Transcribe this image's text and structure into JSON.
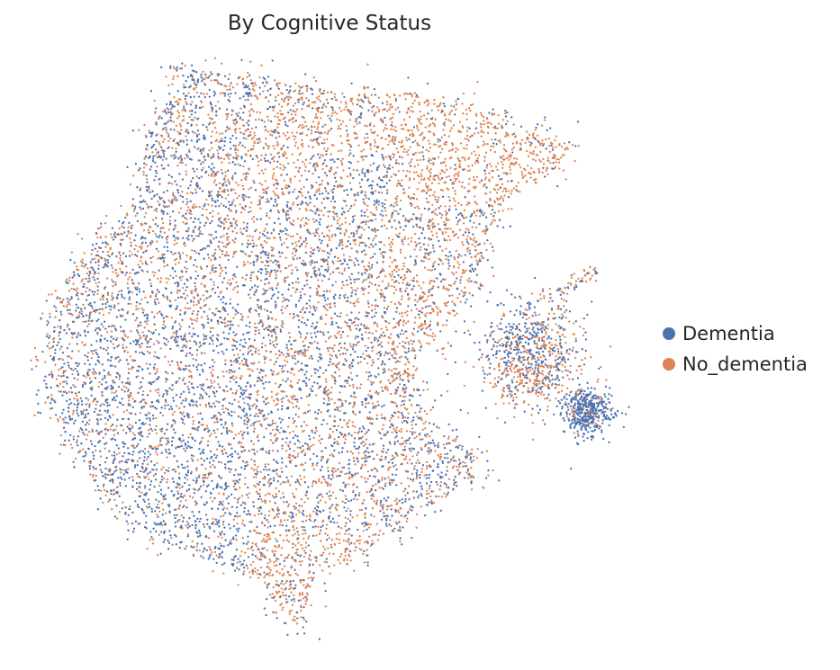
{
  "chart_data": {
    "type": "scatter",
    "title": "By Cognitive Status",
    "xlabel": "",
    "ylabel": "",
    "grid": false,
    "axes_visible": false,
    "legend_position": "right",
    "series": [
      {
        "name": "Dementia",
        "color": "#4c72b0"
      },
      {
        "name": "No_dementia",
        "color": "#dd8452"
      }
    ]
  }
}
